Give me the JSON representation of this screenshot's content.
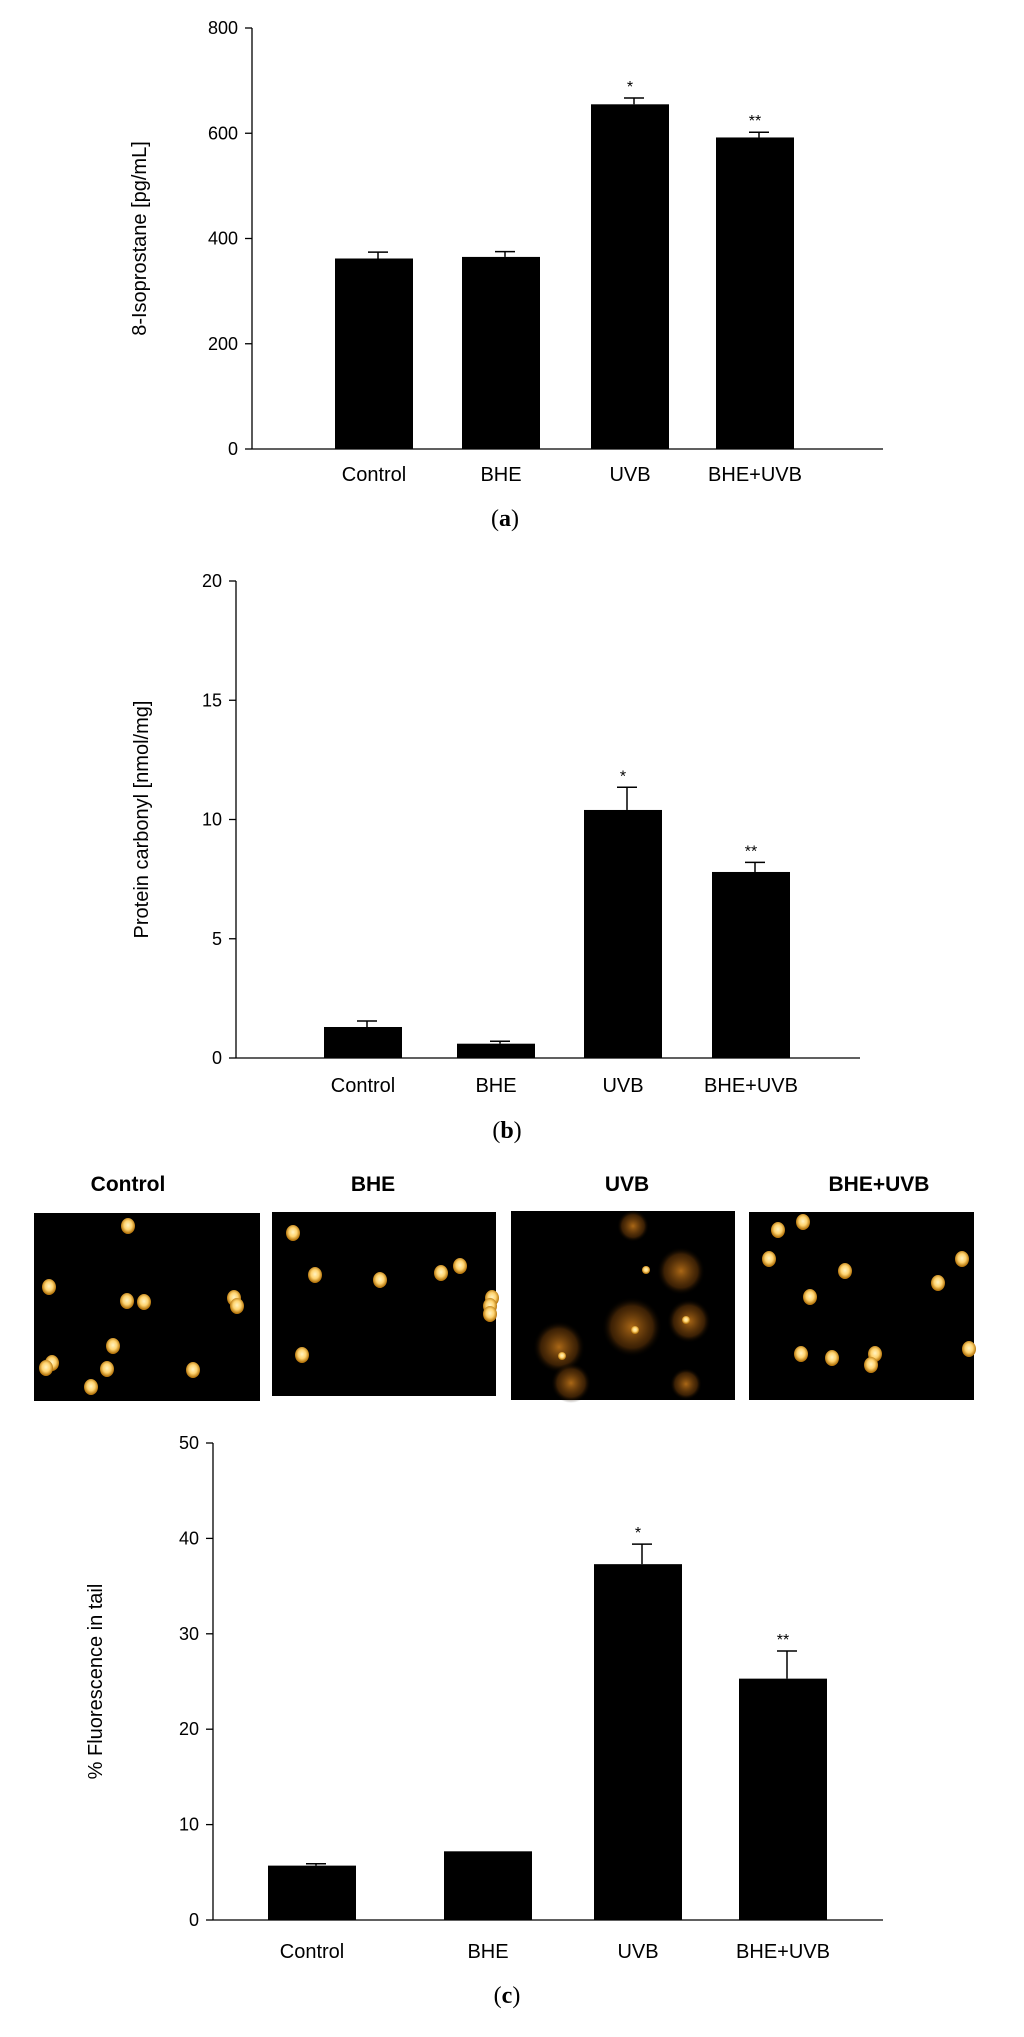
{
  "chart_data": [
    {
      "type": "bar",
      "panel_label": "a",
      "ylabel": "8-Isoprostane [pg/mL]",
      "xlabel": "",
      "categories": [
        "Control",
        "BHE",
        "UVB",
        "BHE+UVB"
      ],
      "values": [
        362,
        365,
        655,
        592
      ],
      "errors": [
        12,
        10,
        12,
        10
      ],
      "significance": [
        "",
        "",
        "*",
        "**"
      ],
      "ylim": [
        0,
        800
      ],
      "yticks": [
        0,
        200,
        400,
        600,
        800
      ],
      "grid": false
    },
    {
      "type": "bar",
      "panel_label": "b",
      "ylabel": "Protein carbonyl [nmol/mg]",
      "xlabel": "",
      "categories": [
        "Control",
        "BHE",
        "UVB",
        "BHE+UVB"
      ],
      "values": [
        1.3,
        0.6,
        10.4,
        7.8
      ],
      "errors": [
        0.25,
        0.1,
        0.95,
        0.4
      ],
      "significance": [
        "",
        "",
        "*",
        "**"
      ],
      "ylim": [
        0,
        20
      ],
      "yticks": [
        0,
        5,
        10,
        15,
        20
      ],
      "grid": false
    },
    {
      "type": "bar",
      "panel_label": "c",
      "ylabel": "% Fluorescence in tail",
      "xlabel": "",
      "categories": [
        "Control",
        "BHE",
        "UVB",
        "BHE+UVB"
      ],
      "values": [
        5.7,
        7.2,
        37.3,
        25.3
      ],
      "errors": [
        0.2,
        0.0,
        2.1,
        2.9
      ],
      "significance": [
        "",
        "",
        "*",
        "**"
      ],
      "ylim": [
        0,
        50
      ],
      "yticks": [
        0,
        10,
        20,
        30,
        40,
        50
      ],
      "grid": false
    }
  ],
  "micrographs": {
    "titles": [
      "Control",
      "BHE",
      "UVB",
      "BHE+UVB"
    ],
    "description_colors": {
      "background": "#000000",
      "cell": "#ffd470",
      "halo": "#c97a1a"
    }
  }
}
